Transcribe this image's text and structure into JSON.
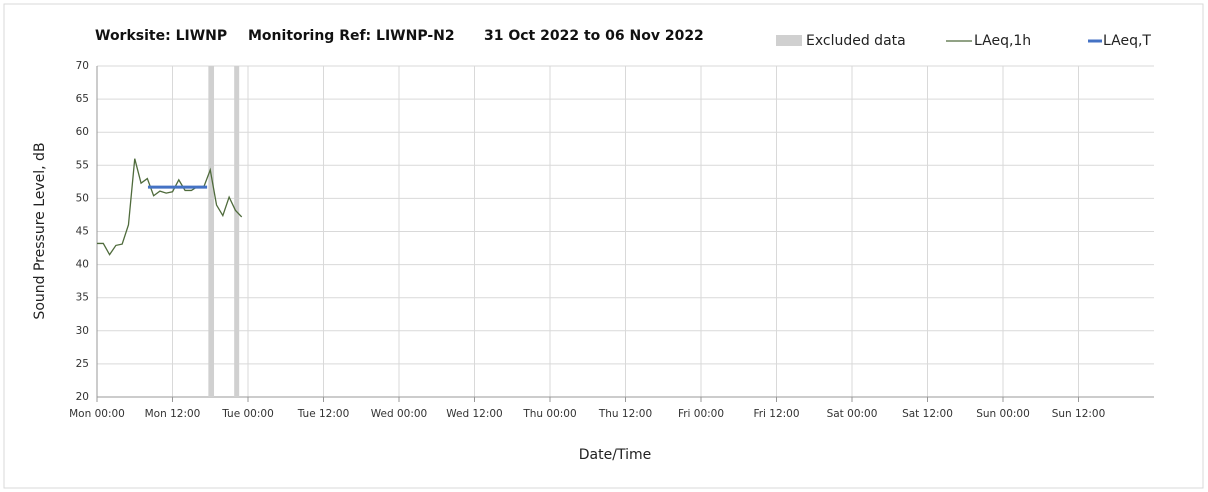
{
  "chart_data": {
    "type": "line",
    "title_parts": [
      "Worksite: LIWNP",
      "Monitoring Ref: LIWNP-N2",
      "31 Oct 2022 to 06 Nov 2022"
    ],
    "ylabel": "Sound Pressure Level, dB",
    "xlabel": "Date/Time",
    "xlim": [
      0,
      168
    ],
    "xticks": [
      {
        "value": 0,
        "label": "Mon 00:00"
      },
      {
        "value": 12,
        "label": "Mon 12:00"
      },
      {
        "value": 24,
        "label": "Tue 00:00"
      },
      {
        "value": 36,
        "label": "Tue 12:00"
      },
      {
        "value": 48,
        "label": "Wed 00:00"
      },
      {
        "value": 60,
        "label": "Wed 12:00"
      },
      {
        "value": 72,
        "label": "Thu 00:00"
      },
      {
        "value": 84,
        "label": "Thu 12:00"
      },
      {
        "value": 96,
        "label": "Fri 00:00"
      },
      {
        "value": 108,
        "label": "Fri 12:00"
      },
      {
        "value": 120,
        "label": "Sat 00:00"
      },
      {
        "value": 132,
        "label": "Sat 12:00"
      },
      {
        "value": 144,
        "label": "Sun 00:00"
      },
      {
        "value": 156,
        "label": "Sun 12:00"
      }
    ],
    "ylim": [
      20,
      70
    ],
    "yticks": [
      20,
      25,
      30,
      35,
      40,
      45,
      50,
      55,
      60,
      65,
      70
    ],
    "grid": true,
    "excluded": {
      "name": "Excluded data",
      "color": "#d0d0d0",
      "ranges": [
        [
          17.7,
          18.6
        ],
        [
          21.8,
          22.6
        ]
      ]
    },
    "series": [
      {
        "name": "LAeq,1h",
        "color": "#4f6b3c",
        "x": [
          0,
          1,
          2,
          3,
          4,
          5,
          6,
          7,
          8,
          9,
          10,
          11,
          12,
          13,
          14,
          15,
          16,
          17,
          18,
          19,
          20,
          21,
          22,
          23
        ],
        "values": [
          43.2,
          43.2,
          41.5,
          42.9,
          43.1,
          46,
          56,
          52.3,
          53,
          50.4,
          51.1,
          50.8,
          51,
          52.8,
          51.2,
          51.2,
          51.8,
          51.8,
          54.3,
          49,
          47.4,
          50.2,
          48.2,
          47.2
        ]
      },
      {
        "name": "LAeq,T",
        "color": "#4472c4",
        "x": [
          8.1,
          17.5
        ],
        "values": [
          51.7,
          51.7
        ]
      }
    ]
  }
}
